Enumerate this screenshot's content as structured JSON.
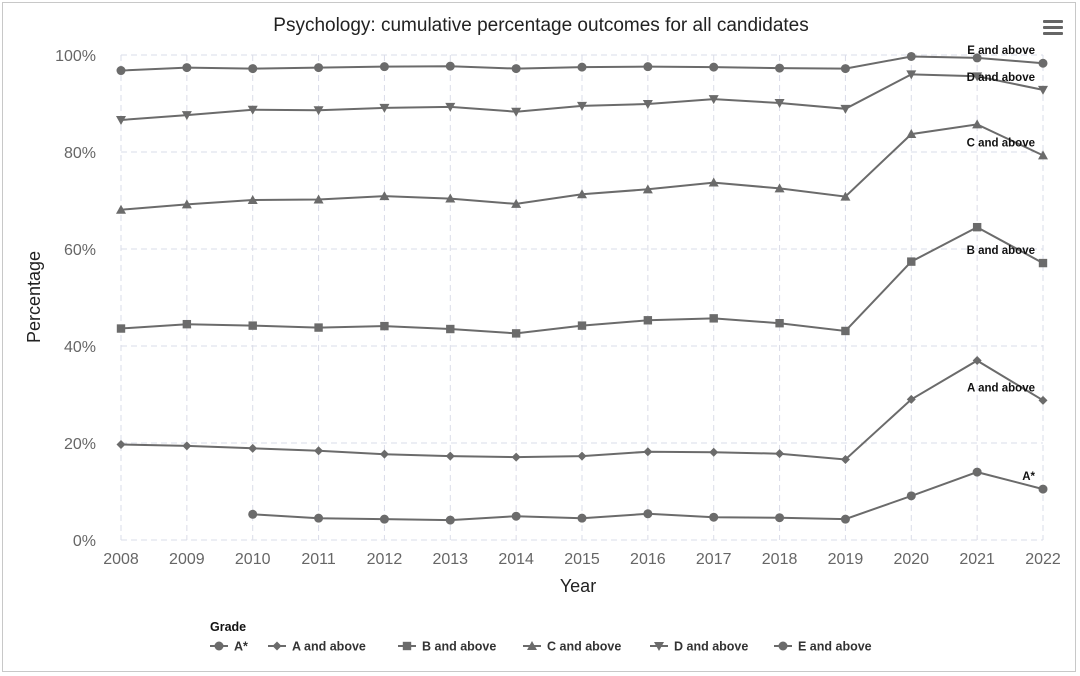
{
  "menu_icon": "hamburger-menu-icon",
  "chart_data": {
    "type": "line",
    "title": "Psychology: cumulative percentage outcomes for all candidates",
    "xlabel": "Year",
    "ylabel": "Percentage",
    "ylim": [
      0,
      100
    ],
    "y_ticks": [
      "0%",
      "20%",
      "40%",
      "60%",
      "80%",
      "100%"
    ],
    "y_tick_values": [
      0,
      20,
      40,
      60,
      80,
      100
    ],
    "x": [
      2008,
      2009,
      2010,
      2011,
      2012,
      2013,
      2014,
      2015,
      2016,
      2017,
      2018,
      2019,
      2020,
      2021,
      2022
    ],
    "x_tick_labels": [
      "2008",
      "2009",
      "2010",
      "2011",
      "2012",
      "2013",
      "2014",
      "2015",
      "2016",
      "2017",
      "2018",
      "2019",
      "2020",
      "2021",
      "2022"
    ],
    "grid": true,
    "line_color": "#6b6b6b",
    "legend_title": "Grade",
    "legend_position": "bottom-left",
    "series": [
      {
        "name": "A*",
        "marker": "circle",
        "end_label": "A*",
        "values": [
          null,
          null,
          5.3,
          4.5,
          4.3,
          4.1,
          4.9,
          4.5,
          5.4,
          4.7,
          4.6,
          4.3,
          9.1,
          14.0,
          10.5
        ]
      },
      {
        "name": "A and above",
        "marker": "diamond",
        "end_label": "A and above",
        "values": [
          19.7,
          19.4,
          18.9,
          18.4,
          17.7,
          17.3,
          17.1,
          17.3,
          18.2,
          18.1,
          17.8,
          16.6,
          29.0,
          37.0,
          28.8
        ]
      },
      {
        "name": "B and above",
        "marker": "square",
        "end_label": "B and above",
        "values": [
          43.6,
          44.5,
          44.2,
          43.8,
          44.1,
          43.5,
          42.6,
          44.2,
          45.3,
          45.7,
          44.7,
          43.1,
          57.4,
          64.5,
          57.1
        ]
      },
      {
        "name": "C and above",
        "marker": "triangle-up",
        "end_label": "C and above",
        "values": [
          68.1,
          69.2,
          70.1,
          70.2,
          70.9,
          70.4,
          69.3,
          71.3,
          72.3,
          73.7,
          72.5,
          70.8,
          83.7,
          85.7,
          79.3
        ]
      },
      {
        "name": "D and above",
        "marker": "triangle-down",
        "end_label": "D and above",
        "values": [
          86.6,
          87.6,
          88.7,
          88.6,
          89.1,
          89.3,
          88.3,
          89.5,
          89.9,
          90.9,
          90.1,
          88.9,
          96.0,
          95.6,
          92.8
        ]
      },
      {
        "name": "E and above",
        "marker": "circle",
        "end_label": "E and above",
        "values": [
          96.8,
          97.4,
          97.2,
          97.4,
          97.6,
          97.7,
          97.2,
          97.5,
          97.6,
          97.5,
          97.3,
          97.2,
          99.7,
          99.4,
          98.3
        ]
      }
    ]
  }
}
